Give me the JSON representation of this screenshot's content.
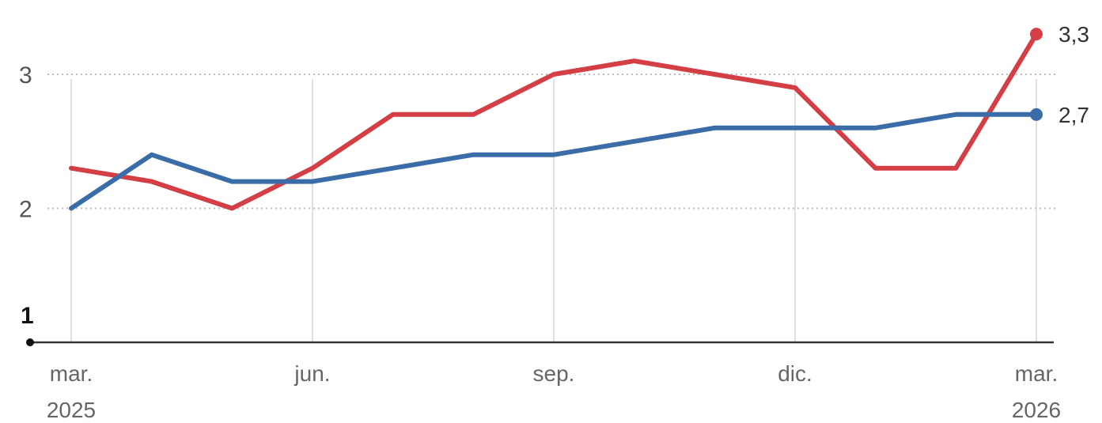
{
  "chart_data": {
    "type": "line",
    "x": [
      "2025-03",
      "2025-04",
      "2025-05",
      "2025-06",
      "2025-07",
      "2025-08",
      "2025-09",
      "2025-10",
      "2025-11",
      "2025-12",
      "2026-01",
      "2026-02",
      "2026-03"
    ],
    "x_ticks": [
      {
        "x": "2025-03",
        "line1": "mar.",
        "line2": "2025"
      },
      {
        "x": "2025-06",
        "line1": "jun.",
        "line2": ""
      },
      {
        "x": "2025-09",
        "line1": "sep.",
        "line2": ""
      },
      {
        "x": "2025-12",
        "line1": "dic.",
        "line2": ""
      },
      {
        "x": "2026-03",
        "line1": "mar.",
        "line2": "2026"
      }
    ],
    "y_ticks": [
      {
        "value": 1,
        "label": "1"
      },
      {
        "value": 2,
        "label": "2"
      },
      {
        "value": 3,
        "label": "3"
      }
    ],
    "ylim": [
      1,
      3.3
    ],
    "grid": true,
    "series": [
      {
        "color": "#d43f46",
        "values": [
          2.3,
          2.2,
          2.0,
          2.3,
          2.7,
          2.7,
          3.0,
          3.1,
          3.0,
          2.9,
          2.3,
          2.3,
          3.3
        ],
        "end_label": "3,3"
      },
      {
        "color": "#3a6da8",
        "values": [
          2.0,
          2.4,
          2.2,
          2.2,
          2.3,
          2.4,
          2.4,
          2.5,
          2.6,
          2.6,
          2.6,
          2.7,
          2.7
        ],
        "end_label": "2,7"
      }
    ],
    "xlabel": "",
    "ylabel": "",
    "title": ""
  }
}
